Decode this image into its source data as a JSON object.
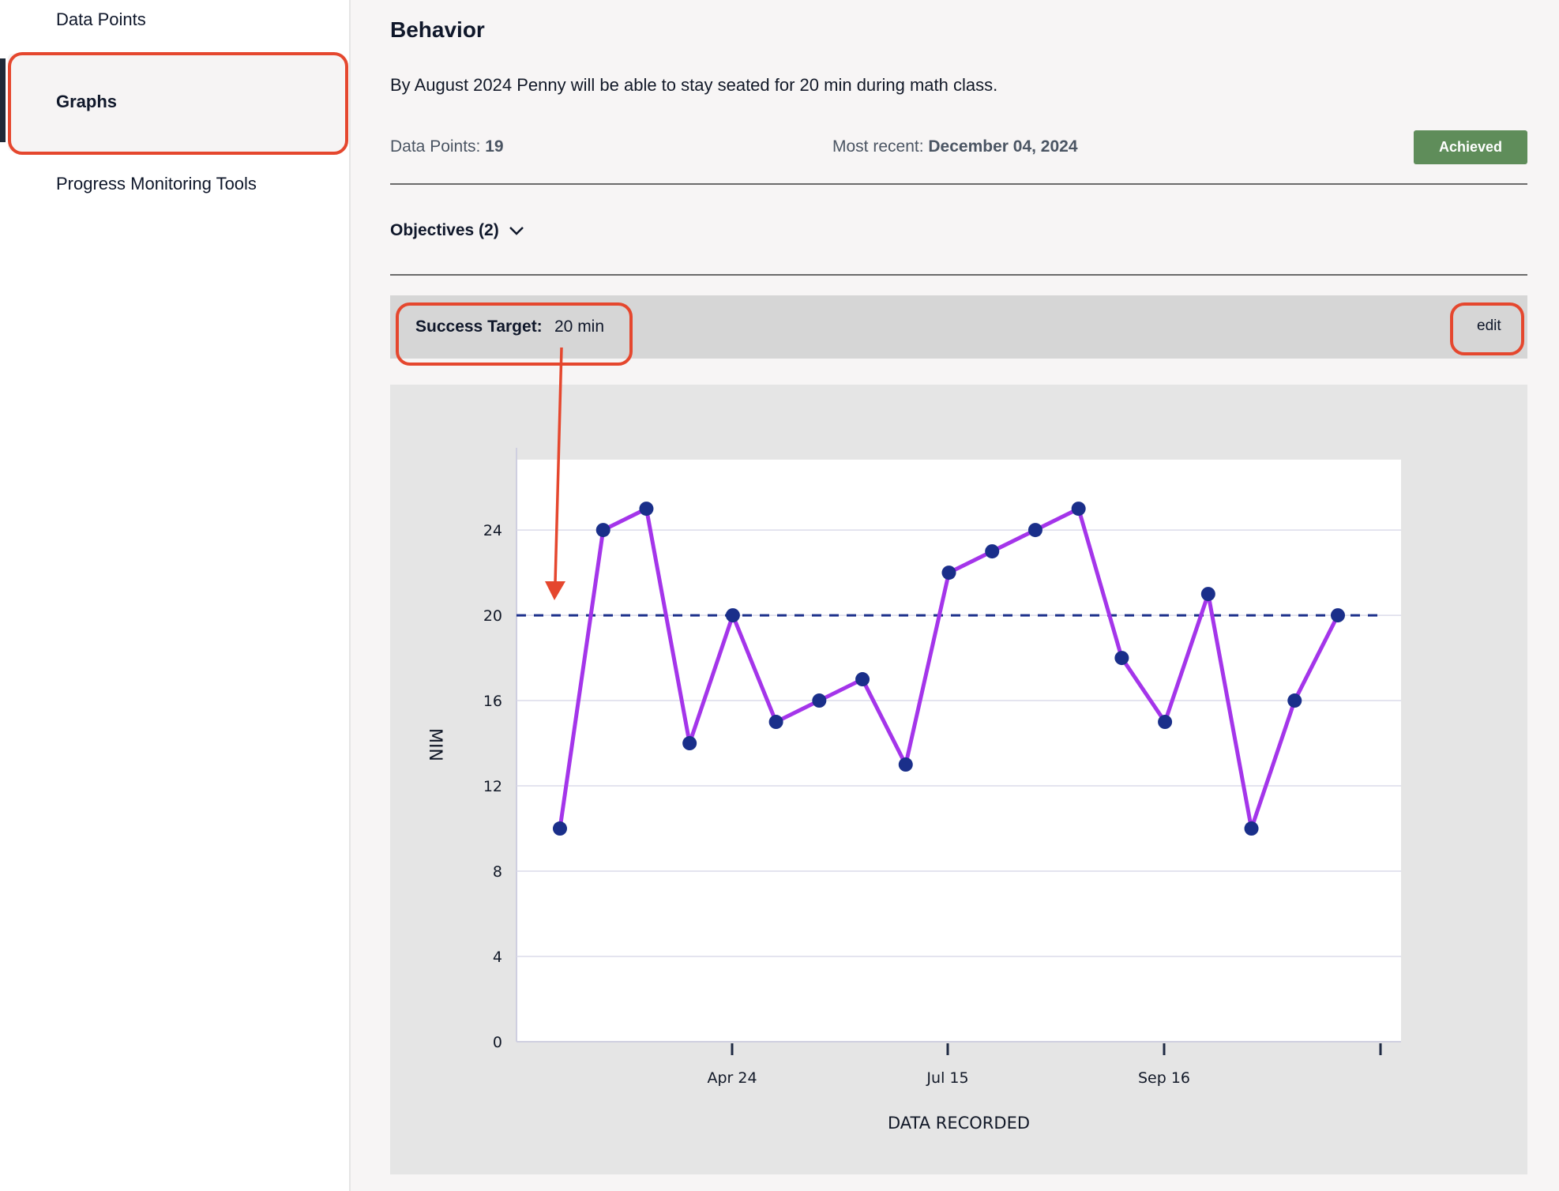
{
  "sidebar": {
    "items": [
      {
        "label": "Data Points"
      },
      {
        "label": "Graphs"
      },
      {
        "label": "Progress Monitoring Tools"
      }
    ]
  },
  "goal": {
    "title": "Behavior",
    "description": "By August 2024 Penny will be able to stay seated for 20 min during math class.",
    "data_points_label": "Data Points:",
    "data_points_value": "19",
    "most_recent_label": "Most recent:",
    "most_recent_value": "December 04, 2024",
    "status": "Achieved",
    "objectives_label": "Objectives (2)"
  },
  "success_target": {
    "label": "Success Target:",
    "value": "20 min",
    "edit_label": "edit"
  },
  "colors": {
    "accent_green": "#5f8d5a",
    "line": "#a435ea",
    "points": "#1a2f8a",
    "target_line": "#1a2f8a",
    "annotation": "#e5472e"
  },
  "chart_data": {
    "type": "line",
    "xlabel": "DATA RECORDED",
    "ylabel": "MIN",
    "ylim": [
      0,
      27.3
    ],
    "yticks": [
      0,
      4,
      8,
      12,
      16,
      20,
      24
    ],
    "xticks": [
      "Apr 24",
      "Jul 15",
      "Sep 16"
    ],
    "target": 20,
    "grid": true,
    "series": [
      {
        "values": [
          10,
          24,
          25,
          14,
          20,
          15,
          16,
          17,
          13,
          22,
          23,
          24,
          25,
          18,
          15,
          21,
          10,
          16,
          20
        ]
      }
    ]
  }
}
